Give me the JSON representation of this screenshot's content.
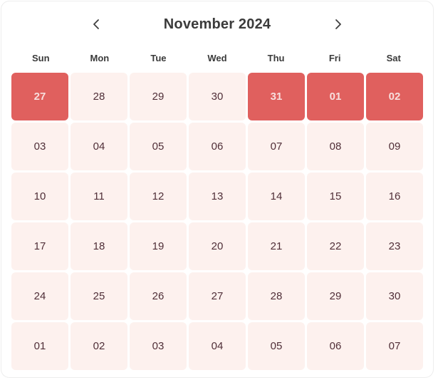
{
  "header": {
    "title": "November 2024",
    "prev_icon": "chevron-left",
    "next_icon": "chevron-right"
  },
  "weekdays": [
    "Sun",
    "Mon",
    "Tue",
    "Wed",
    "Thu",
    "Fri",
    "Sat"
  ],
  "weeks": [
    [
      {
        "label": "27",
        "highlighted": true
      },
      {
        "label": "28",
        "highlighted": false
      },
      {
        "label": "29",
        "highlighted": false
      },
      {
        "label": "30",
        "highlighted": false
      },
      {
        "label": "31",
        "highlighted": true
      },
      {
        "label": "01",
        "highlighted": true
      },
      {
        "label": "02",
        "highlighted": true
      }
    ],
    [
      {
        "label": "03",
        "highlighted": false
      },
      {
        "label": "04",
        "highlighted": false
      },
      {
        "label": "05",
        "highlighted": false
      },
      {
        "label": "06",
        "highlighted": false
      },
      {
        "label": "07",
        "highlighted": false
      },
      {
        "label": "08",
        "highlighted": false
      },
      {
        "label": "09",
        "highlighted": false
      }
    ],
    [
      {
        "label": "10",
        "highlighted": false
      },
      {
        "label": "11",
        "highlighted": false
      },
      {
        "label": "12",
        "highlighted": false
      },
      {
        "label": "13",
        "highlighted": false
      },
      {
        "label": "14",
        "highlighted": false
      },
      {
        "label": "15",
        "highlighted": false
      },
      {
        "label": "16",
        "highlighted": false
      }
    ],
    [
      {
        "label": "17",
        "highlighted": false
      },
      {
        "label": "18",
        "highlighted": false
      },
      {
        "label": "19",
        "highlighted": false
      },
      {
        "label": "20",
        "highlighted": false
      },
      {
        "label": "21",
        "highlighted": false
      },
      {
        "label": "22",
        "highlighted": false
      },
      {
        "label": "23",
        "highlighted": false
      }
    ],
    [
      {
        "label": "24",
        "highlighted": false
      },
      {
        "label": "25",
        "highlighted": false
      },
      {
        "label": "26",
        "highlighted": false
      },
      {
        "label": "27",
        "highlighted": false
      },
      {
        "label": "28",
        "highlighted": false
      },
      {
        "label": "29",
        "highlighted": false
      },
      {
        "label": "30",
        "highlighted": false
      }
    ],
    [
      {
        "label": "01",
        "highlighted": false
      },
      {
        "label": "02",
        "highlighted": false
      },
      {
        "label": "03",
        "highlighted": false
      },
      {
        "label": "04",
        "highlighted": false
      },
      {
        "label": "05",
        "highlighted": false
      },
      {
        "label": "06",
        "highlighted": false
      },
      {
        "label": "07",
        "highlighted": false
      }
    ]
  ],
  "colors": {
    "highlight_bg": "#e0605e",
    "highlight_text": "#f7dedd",
    "day_bg": "#fdf1ee",
    "day_text": "#502f38",
    "title_text": "#3b3b3b",
    "weekday_text": "#3a3a3a",
    "card_border": "#ededed"
  }
}
